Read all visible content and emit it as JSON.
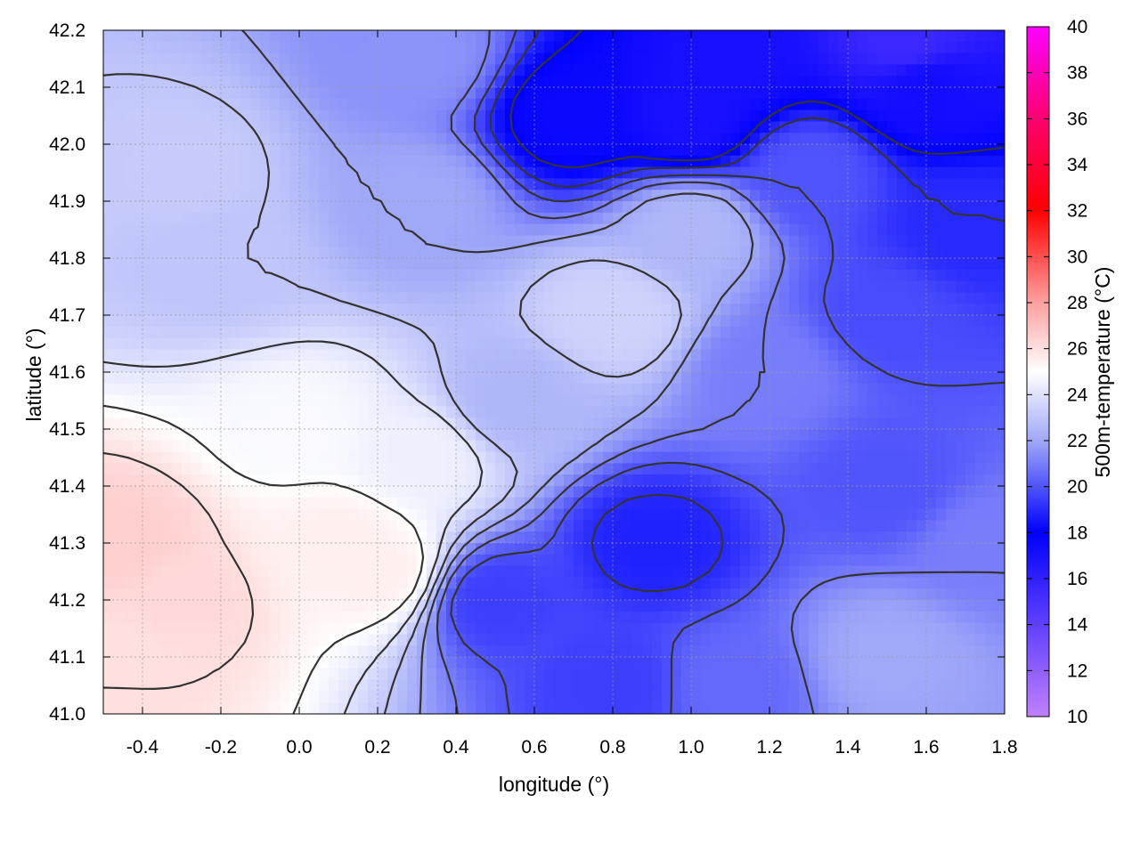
{
  "chart_data": {
    "type": "heatmap",
    "xlabel": "longitude (°)",
    "ylabel": "latitude (°)",
    "colorbar_label": "500m-temperature (°C)",
    "xlim": [
      -0.5,
      1.8
    ],
    "ylim": [
      41.0,
      42.2
    ],
    "x_ticks": [
      "-0.4",
      "-0.2",
      "0.0",
      "0.2",
      "0.4",
      "0.6",
      "0.8",
      "1.0",
      "1.2",
      "1.4",
      "1.6",
      "1.8"
    ],
    "x_tick_values": [
      -0.4,
      -0.2,
      0.0,
      0.2,
      0.4,
      0.6,
      0.8,
      1.0,
      1.2,
      1.4,
      1.6,
      1.8
    ],
    "y_ticks": [
      "41.0",
      "41.1",
      "41.2",
      "41.3",
      "41.4",
      "41.5",
      "41.6",
      "41.7",
      "41.8",
      "41.9",
      "42.0",
      "42.1",
      "42.2"
    ],
    "y_tick_values": [
      41.0,
      41.1,
      41.2,
      41.3,
      41.4,
      41.5,
      41.6,
      41.7,
      41.8,
      41.9,
      42.0,
      42.1,
      42.2
    ],
    "colorbar_ticks": [
      "10",
      "12",
      "14",
      "16",
      "18",
      "20",
      "22",
      "24",
      "26",
      "28",
      "30",
      "32",
      "34",
      "36",
      "38",
      "40"
    ],
    "colorbar_tick_values": [
      10,
      12,
      14,
      16,
      18,
      20,
      22,
      24,
      26,
      28,
      30,
      32,
      34,
      36,
      38,
      40
    ],
    "colorbar_range": [
      10,
      40
    ],
    "colormap": [
      {
        "value": 10,
        "color": "#c080ff"
      },
      {
        "value": 14,
        "color": "#6040ff"
      },
      {
        "value": 18,
        "color": "#0000ff"
      },
      {
        "value": 22,
        "color": "#a0a8f8"
      },
      {
        "value": 25,
        "color": "#ffffff"
      },
      {
        "value": 28,
        "color": "#ffa0a0"
      },
      {
        "value": 32,
        "color": "#ff0000"
      },
      {
        "value": 36,
        "color": "#ff0070"
      },
      {
        "value": 40,
        "color": "#ff00ff"
      }
    ],
    "grid": true,
    "contour_color": "#333333",
    "field_samples": [
      {
        "lon": -0.45,
        "lat": 41.3,
        "t": 26.5
      },
      {
        "lon": -0.45,
        "lat": 41.1,
        "t": 26.0
      },
      {
        "lon": -0.3,
        "lat": 41.2,
        "t": 26.2
      },
      {
        "lon": 0.1,
        "lat": 41.3,
        "t": 25.5
      },
      {
        "lon": 0.2,
        "lat": 41.25,
        "t": 25.5
      },
      {
        "lon": 0.0,
        "lat": 41.5,
        "t": 24.8
      },
      {
        "lon": 0.3,
        "lat": 41.45,
        "t": 24.5
      },
      {
        "lon": -0.2,
        "lat": 41.8,
        "t": 23.0
      },
      {
        "lon": -0.3,
        "lat": 41.95,
        "t": 23.2
      },
      {
        "lon": 0.3,
        "lat": 41.9,
        "t": 22.0
      },
      {
        "lon": 0.8,
        "lat": 41.7,
        "t": 23.5
      },
      {
        "lon": 0.55,
        "lat": 41.55,
        "t": 22.5
      },
      {
        "lon": 0.5,
        "lat": 41.2,
        "t": 19.5
      },
      {
        "lon": 0.9,
        "lat": 41.3,
        "t": 18.8
      },
      {
        "lon": 0.8,
        "lat": 41.05,
        "t": 19.5
      },
      {
        "lon": 1.1,
        "lat": 41.05,
        "t": 20.5
      },
      {
        "lon": 1.5,
        "lat": 41.1,
        "t": 22.0
      },
      {
        "lon": 1.5,
        "lat": 41.4,
        "t": 20.0
      },
      {
        "lon": 1.2,
        "lat": 41.6,
        "t": 21.0
      },
      {
        "lon": 1.5,
        "lat": 41.7,
        "t": 19.8
      },
      {
        "lon": 1.7,
        "lat": 41.85,
        "t": 19.0
      },
      {
        "lon": 1.3,
        "lat": 41.95,
        "t": 20.0
      },
      {
        "lon": 0.7,
        "lat": 42.05,
        "t": 17.5
      },
      {
        "lon": 1.0,
        "lat": 42.05,
        "t": 17.0
      },
      {
        "lon": 1.1,
        "lat": 42.15,
        "t": 17.0
      },
      {
        "lon": 1.6,
        "lat": 42.1,
        "t": 17.2
      },
      {
        "lon": 1.55,
        "lat": 42.18,
        "t": 15.5
      },
      {
        "lon": 0.3,
        "lat": 42.15,
        "t": 21.5
      },
      {
        "lon": 1.75,
        "lat": 41.3,
        "t": 21.0
      },
      {
        "lon": 1.0,
        "lat": 41.85,
        "t": 22.5
      }
    ]
  }
}
